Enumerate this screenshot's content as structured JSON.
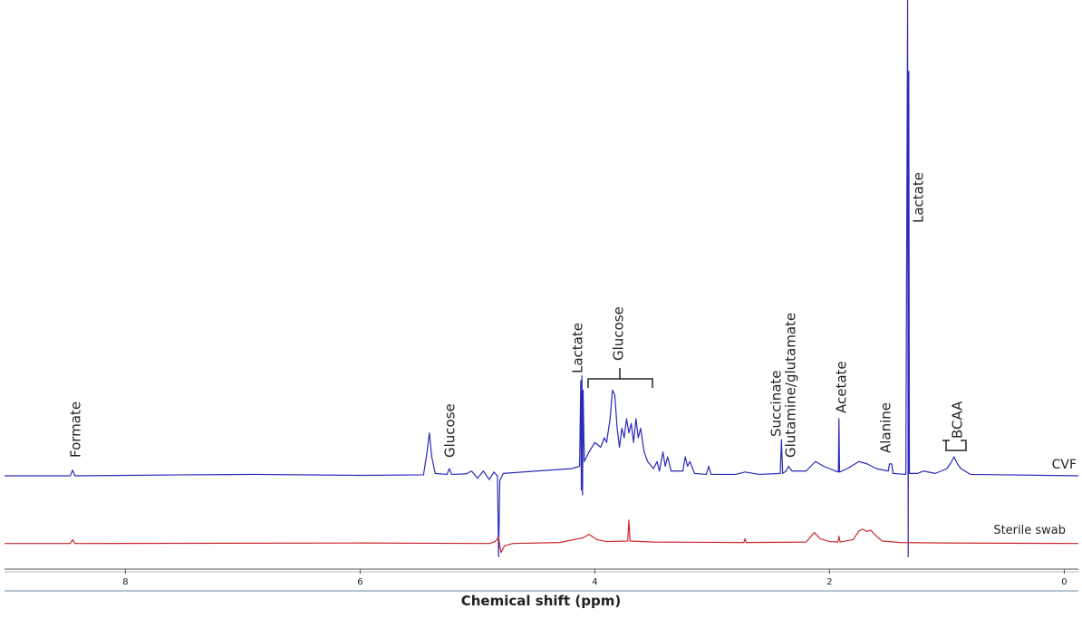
{
  "chart_data": [
    {
      "type": "line",
      "xlim": [
        9.03,
        -0.12
      ],
      "ylim": [
        -20,
        100
      ],
      "series": [
        {
          "name": "CVF",
          "color": "#2a2ab8",
          "x": [
            9.03,
            8.47,
            8.45,
            8.43,
            7.5,
            6.9,
            6.0,
            5.46,
            5.43,
            5.41,
            5.39,
            5.36,
            5.26,
            5.24,
            5.22,
            5.1,
            5.05,
            5.0,
            4.95,
            4.9,
            4.86,
            4.83,
            4.82,
            4.81,
            4.78,
            4.5,
            4.2,
            4.13,
            4.12,
            4.115,
            4.11,
            4.105,
            4.1,
            4.09,
            4.05,
            4.0,
            3.95,
            3.92,
            3.9,
            3.87,
            3.85,
            3.83,
            3.81,
            3.79,
            3.77,
            3.75,
            3.73,
            3.71,
            3.69,
            3.67,
            3.65,
            3.63,
            3.61,
            3.58,
            3.55,
            3.5,
            3.47,
            3.45,
            3.42,
            3.4,
            3.38,
            3.35,
            3.25,
            3.23,
            3.21,
            3.19,
            3.15,
            3.05,
            3.03,
            3.01,
            2.8,
            2.72,
            2.6,
            2.42,
            2.41,
            2.4,
            2.37,
            2.35,
            2.32,
            2.2,
            2.12,
            2.05,
            1.95,
            1.925,
            1.92,
            1.915,
            1.85,
            1.75,
            1.68,
            1.6,
            1.5,
            1.49,
            1.47,
            1.46,
            1.35,
            1.335,
            1.33,
            1.325,
            1.32,
            1.25,
            1.2,
            1.1,
            1.0,
            0.96,
            0.94,
            0.91,
            0.88,
            0.8,
            0.5,
            -0.12
          ],
          "values": [
            0,
            0,
            1.2,
            0,
            0.2,
            0.3,
            0.1,
            0.2,
            5,
            9,
            4,
            0.5,
            0.3,
            1.5,
            0.3,
            0.4,
            1,
            -0.5,
            1,
            -0.8,
            0.8,
            0,
            -17,
            -1,
            0.5,
            1,
            1.5,
            2,
            20,
            -3,
            21,
            -4,
            18,
            3,
            5,
            7,
            6,
            8,
            7,
            12,
            18,
            17,
            10,
            6,
            10,
            8,
            12,
            9,
            11,
            7,
            12,
            8,
            10,
            5,
            3,
            1.5,
            3,
            1,
            5,
            2,
            4,
            1,
            1,
            4,
            2,
            3,
            0.5,
            0.3,
            2,
            0.3,
            0.3,
            0.8,
            0.3,
            0.5,
            7.6,
            0.5,
            1,
            2,
            1,
            1,
            3,
            2,
            1,
            0.8,
            12,
            0.8,
            1.5,
            3,
            2.5,
            1.5,
            1,
            2.5,
            2.5,
            0.5,
            0.3,
            100,
            -17,
            85,
            0.5,
            0.5,
            1,
            0.5,
            1.5,
            3,
            4,
            2.5,
            1.5,
            0.3,
            0.2,
            0
          ]
        }
      ],
      "annotations": [
        {
          "text": "Formate"
        },
        {
          "text": "Glucose"
        },
        {
          "text": "Lactate"
        },
        {
          "text": "Glucose"
        },
        {
          "text": "Succinate"
        },
        {
          "text": "Glutamine/glutamate"
        },
        {
          "text": "Acetate"
        },
        {
          "text": "Alanine"
        },
        {
          "text": "Lactate"
        },
        {
          "text": "BCAA"
        }
      ]
    },
    {
      "type": "line",
      "xlim": [
        9.03,
        -0.12
      ],
      "ylim": [
        -5,
        10
      ],
      "xticks": [
        8,
        6,
        4,
        2,
        0
      ],
      "x_label": "Chemical shift (ppm)",
      "series": [
        {
          "name": "Sterile swab",
          "color": "#c8282d",
          "x": [
            9.03,
            8.47,
            8.45,
            8.43,
            6.0,
            4.9,
            4.85,
            4.82,
            4.8,
            4.77,
            4.7,
            4.3,
            4.1,
            4.05,
            3.98,
            3.9,
            3.72,
            3.71,
            3.7,
            3.5,
            2.73,
            2.72,
            2.71,
            2.2,
            2.13,
            2.08,
            2.0,
            1.93,
            1.92,
            1.91,
            1.8,
            1.75,
            1.72,
            1.68,
            1.65,
            1.6,
            1.55,
            1.4,
            1.0,
            -0.12
          ],
          "values": [
            0,
            0,
            0.8,
            0,
            0.1,
            0,
            0.4,
            1.3,
            -1.9,
            -0.5,
            0,
            0.2,
            1.2,
            1.9,
            0.8,
            0.4,
            0.5,
            4.9,
            0.5,
            0.3,
            0.2,
            1,
            0.2,
            0.3,
            2.3,
            1,
            0.4,
            0.3,
            1.5,
            0.3,
            0.8,
            2.6,
            3,
            2.5,
            2.8,
            1.5,
            0.5,
            0.2,
            0.1,
            0
          ]
        }
      ]
    }
  ]
}
